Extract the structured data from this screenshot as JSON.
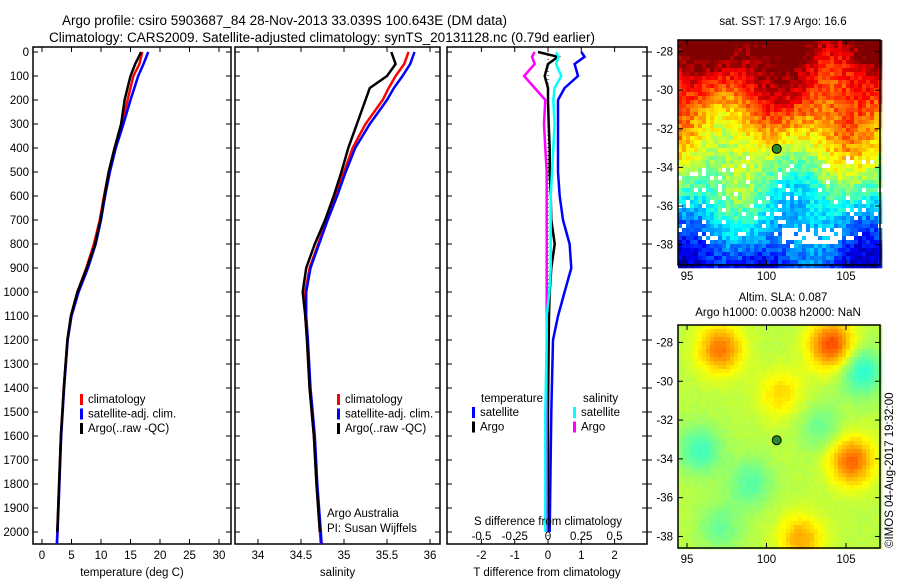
{
  "title_line1": "Argo profile: csiro 5903687_84 28-Nov-2013 33.039S 100.643E (DM data)",
  "title_line2": "Climatology: CARS2009. Satellite-adjusted climatology: synTS_20131128.nc (0.79d earlier)",
  "credit": "Argo Australia",
  "pi": "PI: Susan Wijffels",
  "copyright": "©IMOS 04-Aug-2017 19:32:00",
  "colors": {
    "climatology": "#ff0000",
    "satellite": "#0000ff",
    "argo": "#000000",
    "sal_satellite": "#00ffff",
    "sal_argo": "#ff00ff"
  },
  "chart_data": [
    {
      "type": "line",
      "xlabel": "temperature (deg C)",
      "ylabel": "depth",
      "xticks": [
        "0",
        "5",
        "10",
        "15",
        "20",
        "25",
        "30"
      ],
      "xlim": [
        -1.5,
        32
      ],
      "ylim": [
        2050,
        0
      ],
      "yticks": [
        "0",
        "100",
        "200",
        "300",
        "400",
        "500",
        "600",
        "700",
        "800",
        "900",
        "1000",
        "1100",
        "1200",
        "1300",
        "1400",
        "1500",
        "1600",
        "1700",
        "1800",
        "1900",
        "2000"
      ],
      "legend": [
        "climatology",
        "satellite-adj. clim.",
        "Argo(..raw -QC)"
      ],
      "depth": [
        0,
        50,
        100,
        200,
        300,
        400,
        500,
        600,
        700,
        800,
        900,
        1000,
        1100,
        1200,
        1400,
        1600,
        1800,
        2000,
        2050
      ],
      "series": [
        {
          "name": "climatology",
          "values": [
            17,
            16.5,
            15.5,
            14.5,
            13.5,
            12.3,
            11.3,
            10.5,
            9.8,
            8.8,
            7.5,
            6,
            4.9,
            4.3,
            3.7,
            3.2,
            2.9,
            2.6,
            2.5
          ]
        },
        {
          "name": "satellite-adj. clim.",
          "values": [
            18,
            17.2,
            16.3,
            15,
            13.8,
            12.5,
            11.5,
            10.7,
            10,
            9.1,
            7.8,
            6.2,
            5,
            4.35,
            3.75,
            3.25,
            2.95,
            2.65,
            2.55
          ]
        },
        {
          "name": "Argo(..raw -QC)",
          "values": [
            16.8,
            15.8,
            15,
            14,
            13.4,
            12.3,
            11.3,
            10.6,
            9.9,
            9,
            7.6,
            6,
            4.9,
            4.3,
            3.7,
            3.2,
            2.9,
            2.6,
            null
          ]
        }
      ]
    },
    {
      "type": "line",
      "xlabel": "salinity",
      "xticks": [
        "34",
        "34.5",
        "35",
        "35.5",
        "36"
      ],
      "xlim": [
        33.73,
        36.1
      ],
      "ylim": [
        2050,
        0
      ],
      "legend": [
        "climatology",
        "satellite-adj. clim.",
        "Argo(..raw -QC)"
      ],
      "depth": [
        0,
        50,
        100,
        150,
        200,
        300,
        400,
        500,
        600,
        700,
        800,
        900,
        1000,
        1100,
        1200,
        1400,
        1600,
        1800,
        2000,
        2050
      ],
      "series": [
        {
          "name": "climatology",
          "values": [
            35.75,
            35.7,
            35.6,
            35.52,
            35.45,
            35.25,
            35.1,
            35.0,
            34.9,
            34.8,
            34.7,
            34.6,
            34.55,
            34.55,
            34.57,
            34.6,
            34.65,
            34.68,
            34.72,
            34.73
          ]
        },
        {
          "name": "satellite-adj. clim.",
          "values": [
            35.82,
            35.77,
            35.68,
            35.58,
            35.5,
            35.3,
            35.13,
            35.02,
            34.92,
            34.81,
            34.71,
            34.61,
            34.56,
            34.56,
            34.58,
            34.61,
            34.66,
            34.69,
            34.73,
            34.74
          ]
        },
        {
          "name": "Argo(..raw -QC)",
          "values": [
            35.55,
            35.6,
            35.5,
            35.3,
            35.25,
            35.15,
            35.05,
            34.97,
            34.88,
            34.78,
            34.66,
            34.56,
            34.52,
            34.55,
            34.57,
            34.6,
            34.65,
            34.68,
            34.72,
            null
          ]
        }
      ]
    },
    {
      "type": "line",
      "xlabel": "T difference from climatology",
      "xlabel2": "S difference from climatology",
      "xticks": [
        "-2",
        "-1",
        "0",
        "1",
        "2"
      ],
      "xticks2": [
        "-0.5",
        "-0.25",
        "0",
        "0.25",
        "0.5"
      ],
      "xlim": [
        -3,
        3
      ],
      "legend_temp_title": "temperature",
      "legend_sal_title": "salinity",
      "legend": [
        "satellite",
        "Argo",
        "satellite",
        "Argo"
      ],
      "depth": [
        0,
        20,
        50,
        100,
        150,
        200,
        300,
        400,
        500,
        600,
        700,
        800,
        900,
        1000,
        1100,
        1200,
        1500,
        2000
      ],
      "series": [
        {
          "name": "T satellite",
          "values": [
            1.0,
            1.1,
            0.8,
            0.9,
            0.5,
            0.3,
            0.3,
            0.3,
            0.3,
            0.35,
            0.45,
            0.65,
            0.7,
            0.5,
            0.3,
            0.15,
            0.1,
            0.05
          ]
        },
        {
          "name": "T Argo",
          "values": [
            -0.3,
            0.3,
            0.0,
            -0.1,
            0.0,
            0.0,
            0.02,
            0.05,
            0.05,
            0.08,
            0.1,
            0.2,
            0.1,
            0.05,
            0.03,
            0.02,
            0.0,
            0.0
          ]
        },
        {
          "name": "S satellite",
          "values": [
            0.06,
            0.08,
            0.06,
            0.1,
            0.05,
            0.04,
            0.05,
            0.04,
            0.03,
            0.02,
            0.02,
            0.02,
            0.02,
            0.01,
            -0.01,
            -0.01,
            -0.02,
            -0.02
          ]
        },
        {
          "name": "S Argo",
          "values": [
            -0.1,
            -0.12,
            -0.1,
            -0.18,
            -0.1,
            -0.02,
            -0.03,
            -0.02,
            -0.01,
            -0.01,
            -0.01,
            -0.01,
            -0.01,
            -0.01,
            -0.01,
            -0.01,
            -0.01,
            -0.01
          ]
        }
      ]
    },
    {
      "type": "heatmap",
      "title": "sat. SST: 17.9 Argo: 16.6",
      "xticks": [
        "95",
        "100",
        "105"
      ],
      "yticks": [
        "-28",
        "-30",
        "-32",
        "-34",
        "-36",
        "-38"
      ],
      "marker": {
        "lon": 100.643,
        "lat": -33.039
      }
    },
    {
      "type": "heatmap",
      "title": "Altim. SLA: 0.087",
      "subtitle": "Argo h1000: 0.0038 h2000: NaN",
      "xticks": [
        "95",
        "100",
        "105"
      ],
      "yticks": [
        "-28",
        "-30",
        "-32",
        "-34",
        "-36",
        "-38"
      ],
      "marker": {
        "lon": 100.643,
        "lat": -33.039
      }
    }
  ]
}
